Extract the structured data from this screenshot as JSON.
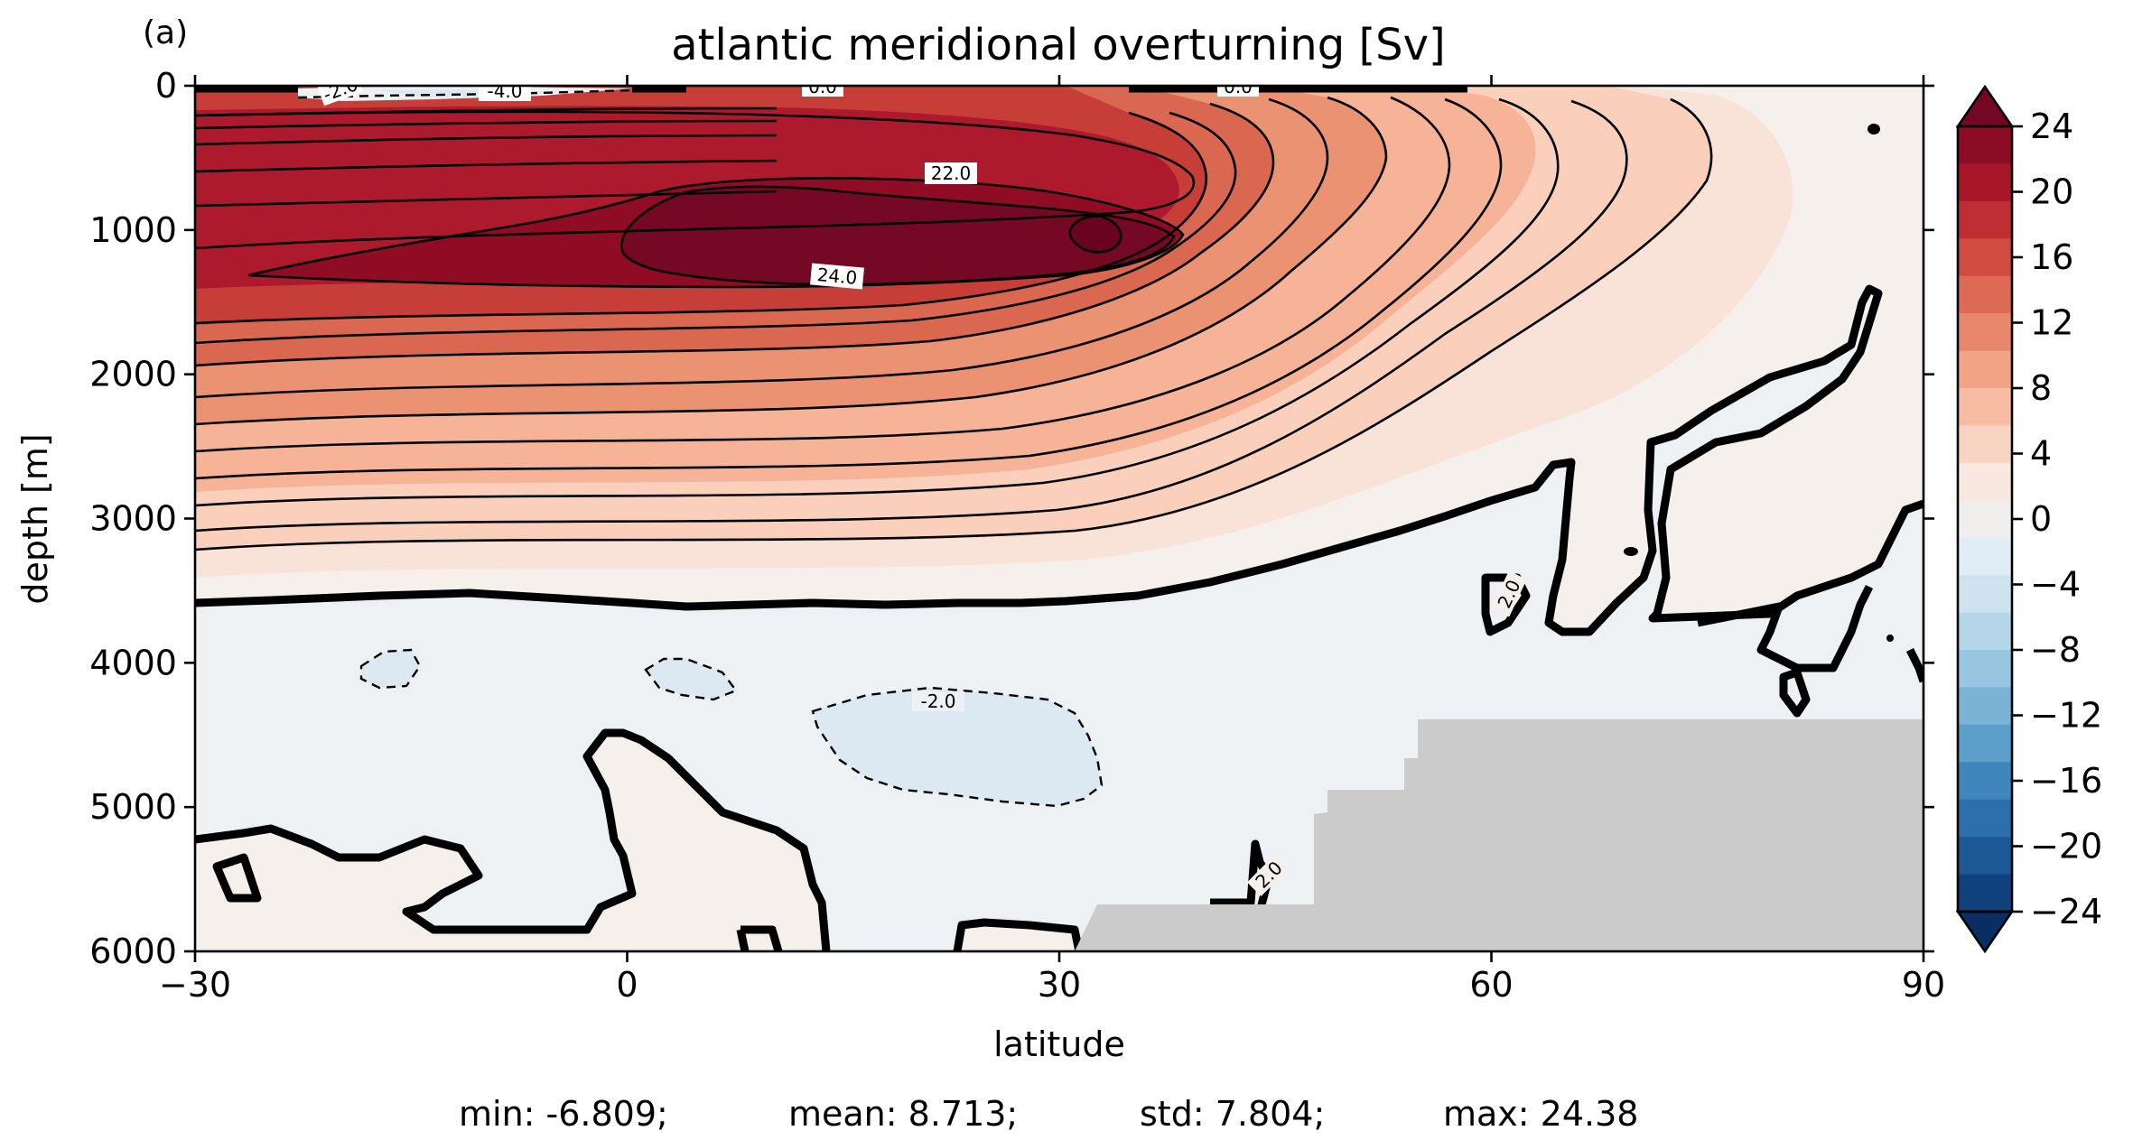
{
  "panel_label": "(a)",
  "chart_data": {
    "type": "heatmap",
    "subtype": "filled-contour",
    "title": "atlantic meridional overturning [Sv]",
    "xlabel": "latitude",
    "ylabel": "depth [m]",
    "xlim": [
      -30,
      90
    ],
    "ylim": [
      6000,
      0
    ],
    "y_inverted": true,
    "x_ticks": [
      -30,
      0,
      30,
      60,
      90
    ],
    "x_tick_labels": [
      "−30",
      "0",
      "30",
      "60",
      "90"
    ],
    "y_ticks": [
      0,
      1000,
      2000,
      3000,
      4000,
      5000,
      6000
    ],
    "y_tick_labels": [
      "0",
      "1000",
      "2000",
      "3000",
      "4000",
      "5000",
      "6000"
    ],
    "colormap": "RdBu_r",
    "colorbar": {
      "levels_min": -24,
      "levels_max": 24,
      "level_step": 2,
      "ticks": [
        24,
        20,
        16,
        12,
        8,
        4,
        0,
        -4,
        -8,
        -12,
        -16,
        -20,
        -24
      ],
      "tick_labels": [
        "24",
        "20",
        "16",
        "12",
        "8",
        "4",
        "0",
        "−4",
        "−8",
        "−12",
        "−16",
        "−20",
        "−24"
      ],
      "extend": "both",
      "colors_top_to_bottom": [
        "#740722",
        "#8d0c25",
        "#a8162a",
        "#bf2e33",
        "#d04c41",
        "#dc6a55",
        "#e8876b",
        "#f2a487",
        "#f7bda4",
        "#fad4c2",
        "#f8e8df",
        "#f1efed",
        "#e1edf4",
        "#cee3ef",
        "#b4d6e8",
        "#98c6e0",
        "#79b3d6",
        "#5b9fca",
        "#3f86bc",
        "#2d6fad",
        "#1d5896",
        "#11417d",
        "#082e63"
      ]
    },
    "contour_labels": [
      "-2.0",
      "-4.0",
      "0.0",
      "0.0",
      "22.0",
      "24.0",
      "-2.0",
      "2.0",
      "2.0"
    ],
    "land_mask_color": "#cbcbcb",
    "summary": {
      "min": -6.809,
      "mean": 8.713,
      "std": 7.804,
      "max": 24.38
    }
  },
  "stats_text": {
    "min": "min: -6.809;",
    "mean": "mean: 8.713;",
    "std": "std: 7.804;",
    "max": "max: 24.38"
  }
}
